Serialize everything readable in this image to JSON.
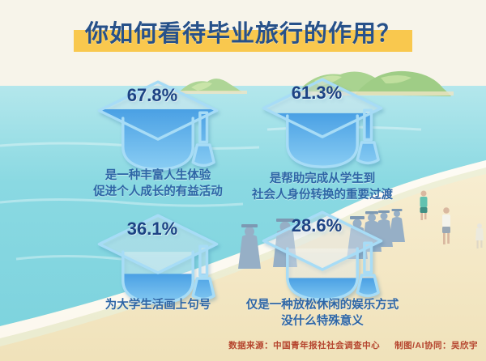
{
  "title": "你如何看待毕业旅行的作用？",
  "stats": [
    {
      "value": "67.8%",
      "pct": 67.8,
      "line1": "是一种丰富人生体验",
      "line2": "促进个人成长的有益活动"
    },
    {
      "value": "61.3%",
      "pct": 61.3,
      "line1": "是帮助完成从学生到",
      "line2": "社会人身份转换的重要过渡"
    },
    {
      "value": "36.1%",
      "pct": 36.1,
      "line1": "为大学生活画上句号",
      "line2": ""
    },
    {
      "value": "28.6%",
      "pct": 28.6,
      "line1": "仅是一种放松休闲的娱乐方式",
      "line2": "没什么特殊意义"
    }
  ],
  "footer": {
    "source": "数据来源：中国青年报社社会调查中心",
    "credit": "制图/AI协同：吴欣宇"
  },
  "colors": {
    "title_text": "#27518a",
    "title_highlight": "#f9c84e",
    "percent_text": "#1d4384",
    "desc_text": "#2e66a6",
    "footer_text": "#b5452e",
    "cap_water_top": "#4aa0e4",
    "cap_water_bottom": "#90d2f5",
    "cap_outline": "#a7dcf6",
    "sea": "#84d6e0",
    "sand": "#f2e5c2",
    "island_green": "#a9d390",
    "gown_blue": "#96afc6"
  },
  "chart_data": {
    "type": "bar",
    "note": "pictogram — graduation caps filled to the listed percentage",
    "title": "你如何看待毕业旅行的作用？",
    "categories": [
      "是一种丰富人生体验 促进个人成长的有益活动",
      "是帮助完成从学生到社会人身份转换的重要过渡",
      "为大学生活画上句号",
      "仅是一种放松休闲的娱乐方式 没什么特殊意义"
    ],
    "values": [
      67.8,
      61.3,
      36.1,
      28.6
    ],
    "unit": "%",
    "ylim": [
      0,
      100
    ],
    "source": "中国青年报社社会调查中心"
  }
}
